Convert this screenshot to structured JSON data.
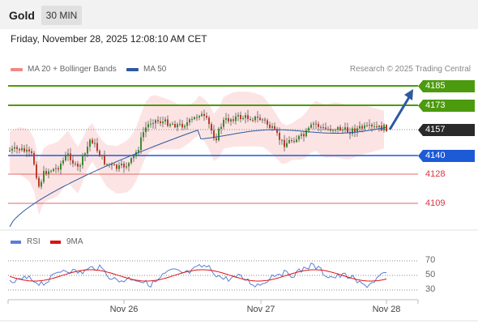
{
  "header": {
    "instrument": "Gold",
    "timeframe_tab": "30 MIN"
  },
  "datetime": "Friday, November 28, 2025 12:08:10 AM CET",
  "legend": {
    "ma20_label": "MA 20 + Bollinger Bands",
    "ma50_label": "MA 50",
    "credit": "Research © 2025 Trading Central"
  },
  "colors": {
    "resistance": "#4c9a0e",
    "support": "#1c5ad6",
    "target_line": "#e06a6a",
    "current_tag": "#2a2a2a",
    "ma20_band": "#f4a9a9",
    "ma50": "#2c5aa0",
    "rsi": "#5b7fd6",
    "rsi_ma": "#e01010",
    "arrow": "#2c5aa0"
  },
  "price_levels": [
    {
      "label": "4185",
      "style": "green-box"
    },
    {
      "label": "4173",
      "style": "green-box"
    },
    {
      "label": "4157",
      "style": "current"
    },
    {
      "label": "4140",
      "style": "blue-box"
    },
    {
      "label": "4128",
      "style": "red-text"
    },
    {
      "label": "4109",
      "style": "red-text"
    }
  ],
  "rsi_panel": {
    "rsi_label": "RSI",
    "ma_label": "9MA",
    "ticks": [
      "70",
      "50",
      "30"
    ]
  },
  "x_axis": {
    "labels": [
      "Nov 26",
      "Nov 27",
      "Nov 28"
    ]
  }
}
